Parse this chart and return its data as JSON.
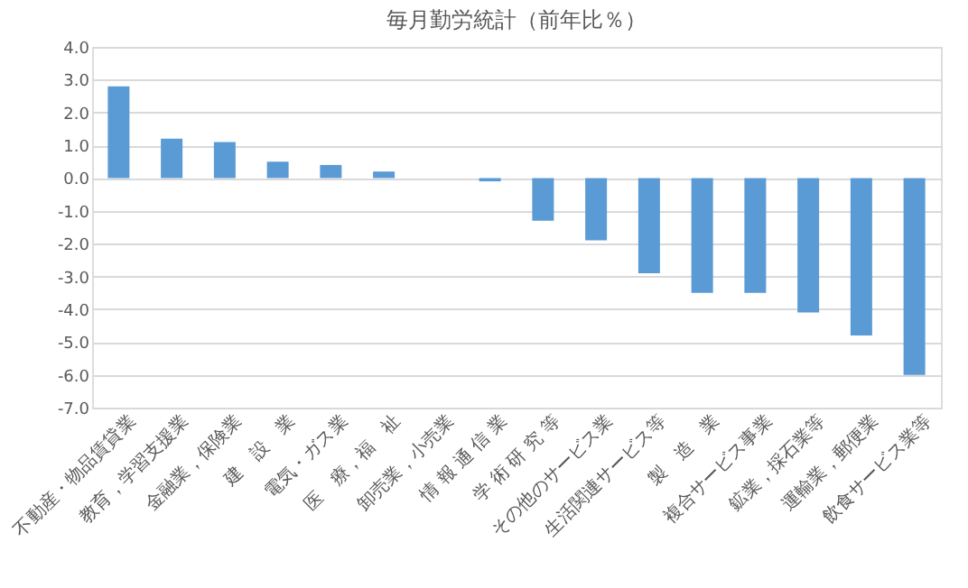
{
  "chart_data": {
    "type": "bar",
    "title": "毎月勤労統計（前年比％）",
    "categories": [
      "不動産・物品賃貸業",
      "教育，学習支援業",
      "金融業，保険業",
      "建　設　業",
      "電気・ガス業",
      "医　療，福　祉",
      "卸売業，小売業",
      "情 報 通 信 業",
      "学 術 研 究 等",
      "その他のサービス業",
      "生活関連サービス等",
      "製　造　業",
      "複合サービス事業",
      "鉱業，採石業等",
      "運輸業，郵便業",
      "飲食サービス業等"
    ],
    "values": [
      2.8,
      1.2,
      1.1,
      0.5,
      0.4,
      0.2,
      0.0,
      -0.1,
      -1.3,
      -1.9,
      -2.9,
      -3.5,
      -3.5,
      -4.1,
      -4.8,
      -6.0
    ],
    "color": "#5b9bd5",
    "ylim": [
      -7,
      4
    ],
    "yticks": [
      {
        "value": -7,
        "label": "-7.0"
      },
      {
        "value": -6,
        "label": "-6.0"
      },
      {
        "value": -5,
        "label": "-5.0"
      },
      {
        "value": -4,
        "label": "-4.0"
      },
      {
        "value": -3,
        "label": "-3.0"
      },
      {
        "value": -2,
        "label": "-2.0"
      },
      {
        "value": -1,
        "label": "-1.0"
      },
      {
        "value": 0,
        "label": "0.0"
      },
      {
        "value": 1,
        "label": "1.0"
      },
      {
        "value": 2,
        "label": "2.0"
      },
      {
        "value": 3,
        "label": "3.0"
      },
      {
        "value": 4,
        "label": "4.0"
      }
    ],
    "grid": "y"
  }
}
